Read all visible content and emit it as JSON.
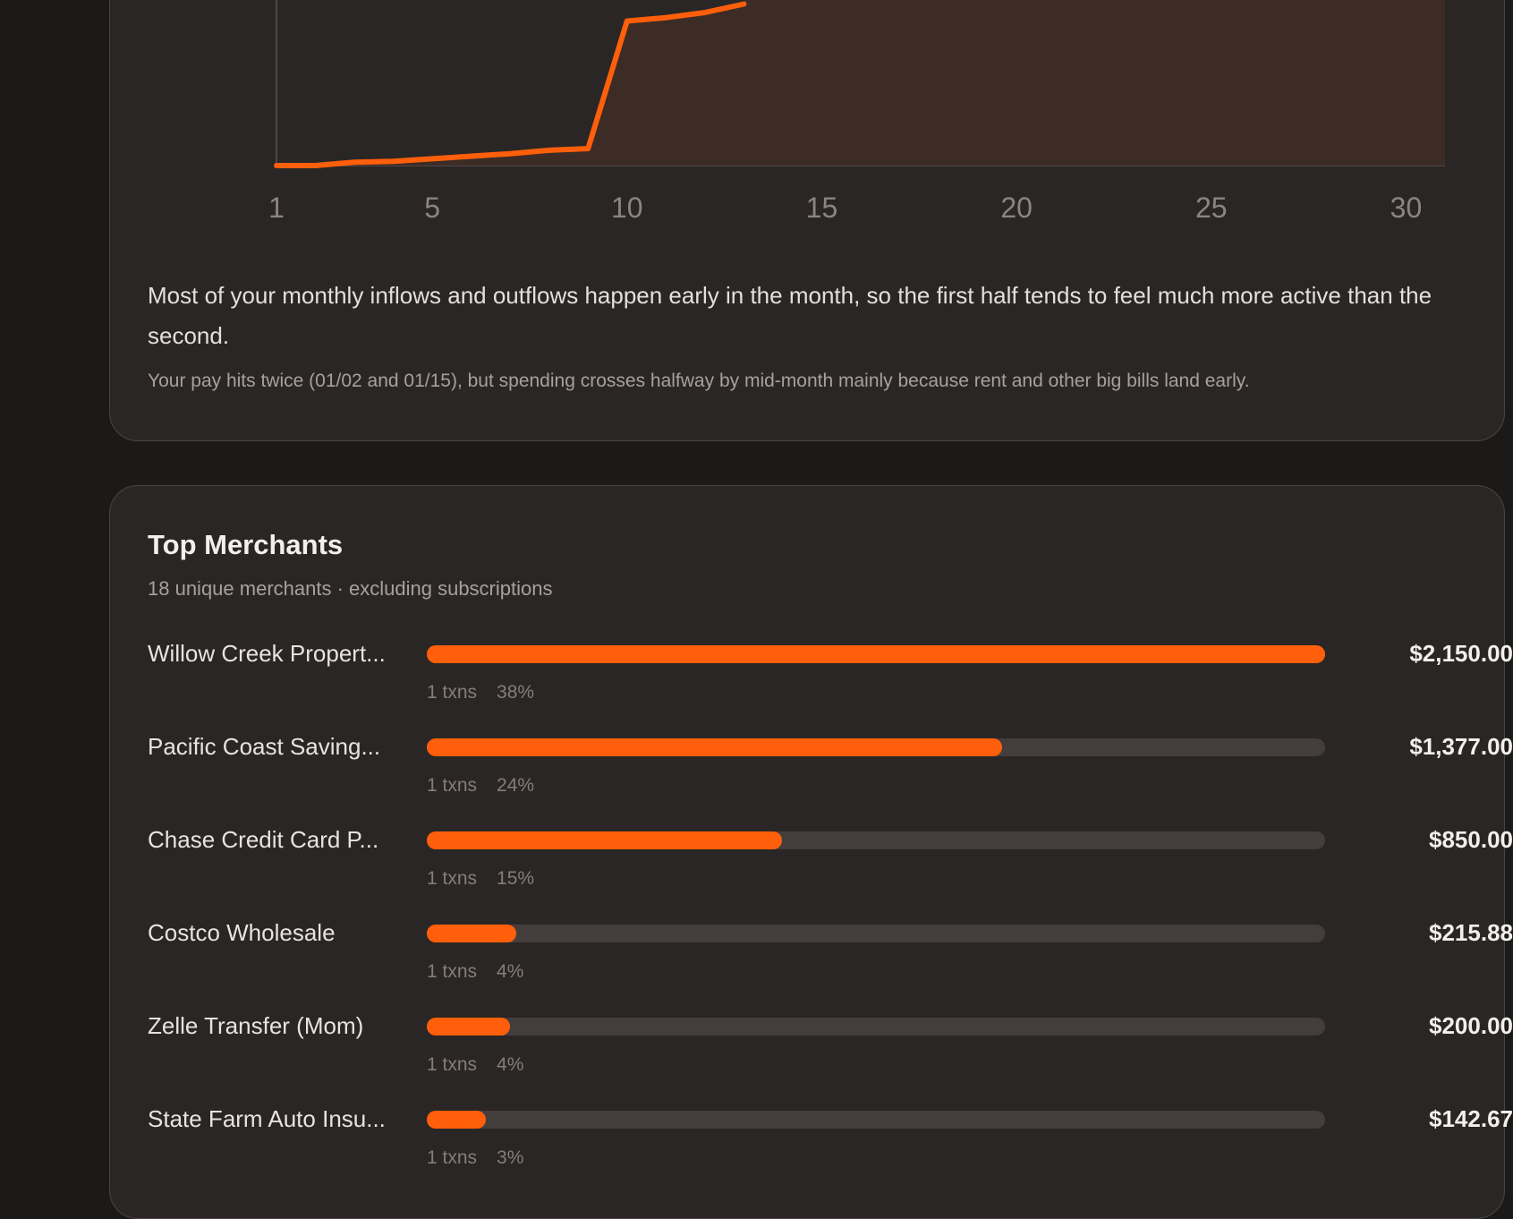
{
  "colors": {
    "accent": "#ff5f0a",
    "card": "#2a2625",
    "track": "#433e3b",
    "area_fill": "#3d2b25"
  },
  "chart_data": {
    "type": "area",
    "x_ticks": [
      "1",
      "5",
      "10",
      "15",
      "20",
      "25",
      "30"
    ],
    "xlim": [
      1,
      31
    ],
    "x": [
      1,
      2,
      3,
      4,
      5,
      6,
      7,
      8,
      9,
      10,
      11,
      12,
      13
    ],
    "y": [
      0.0,
      0.0,
      0.02,
      0.025,
      0.04,
      0.055,
      0.07,
      0.09,
      0.1,
      0.85,
      0.87,
      0.9,
      0.95
    ],
    "ylim": [
      0,
      1
    ],
    "title": "",
    "xlabel": "",
    "ylabel": ""
  },
  "insight": {
    "main": "Most of your monthly inflows and outflows happen early in the month, so the first half tends to feel much more active than the second.",
    "sub": "Your pay hits twice (01/02 and 01/15), but spending crosses halfway by mid-month mainly because rent and other big bills land early."
  },
  "merchants": {
    "title": "Top Merchants",
    "subtitle": "18 unique merchants · excluding subscriptions",
    "items": [
      {
        "name": "Willow Creek Propert...",
        "amount": "$2,150.00",
        "txns": "1 txns",
        "pct": "38%",
        "share": 1.0
      },
      {
        "name": "Pacific Coast Saving...",
        "amount": "$1,377.00",
        "txns": "1 txns",
        "pct": "24%",
        "share": 0.64
      },
      {
        "name": "Chase Credit Card P...",
        "amount": "$850.00",
        "txns": "1 txns",
        "pct": "15%",
        "share": 0.395
      },
      {
        "name": "Costco Wholesale",
        "amount": "$215.88",
        "txns": "1 txns",
        "pct": "4%",
        "share": 0.1
      },
      {
        "name": "Zelle Transfer (Mom)",
        "amount": "$200.00",
        "txns": "1 txns",
        "pct": "4%",
        "share": 0.093
      },
      {
        "name": "State Farm Auto Insu...",
        "amount": "$142.67",
        "txns": "1 txns",
        "pct": "3%",
        "share": 0.066
      }
    ]
  }
}
